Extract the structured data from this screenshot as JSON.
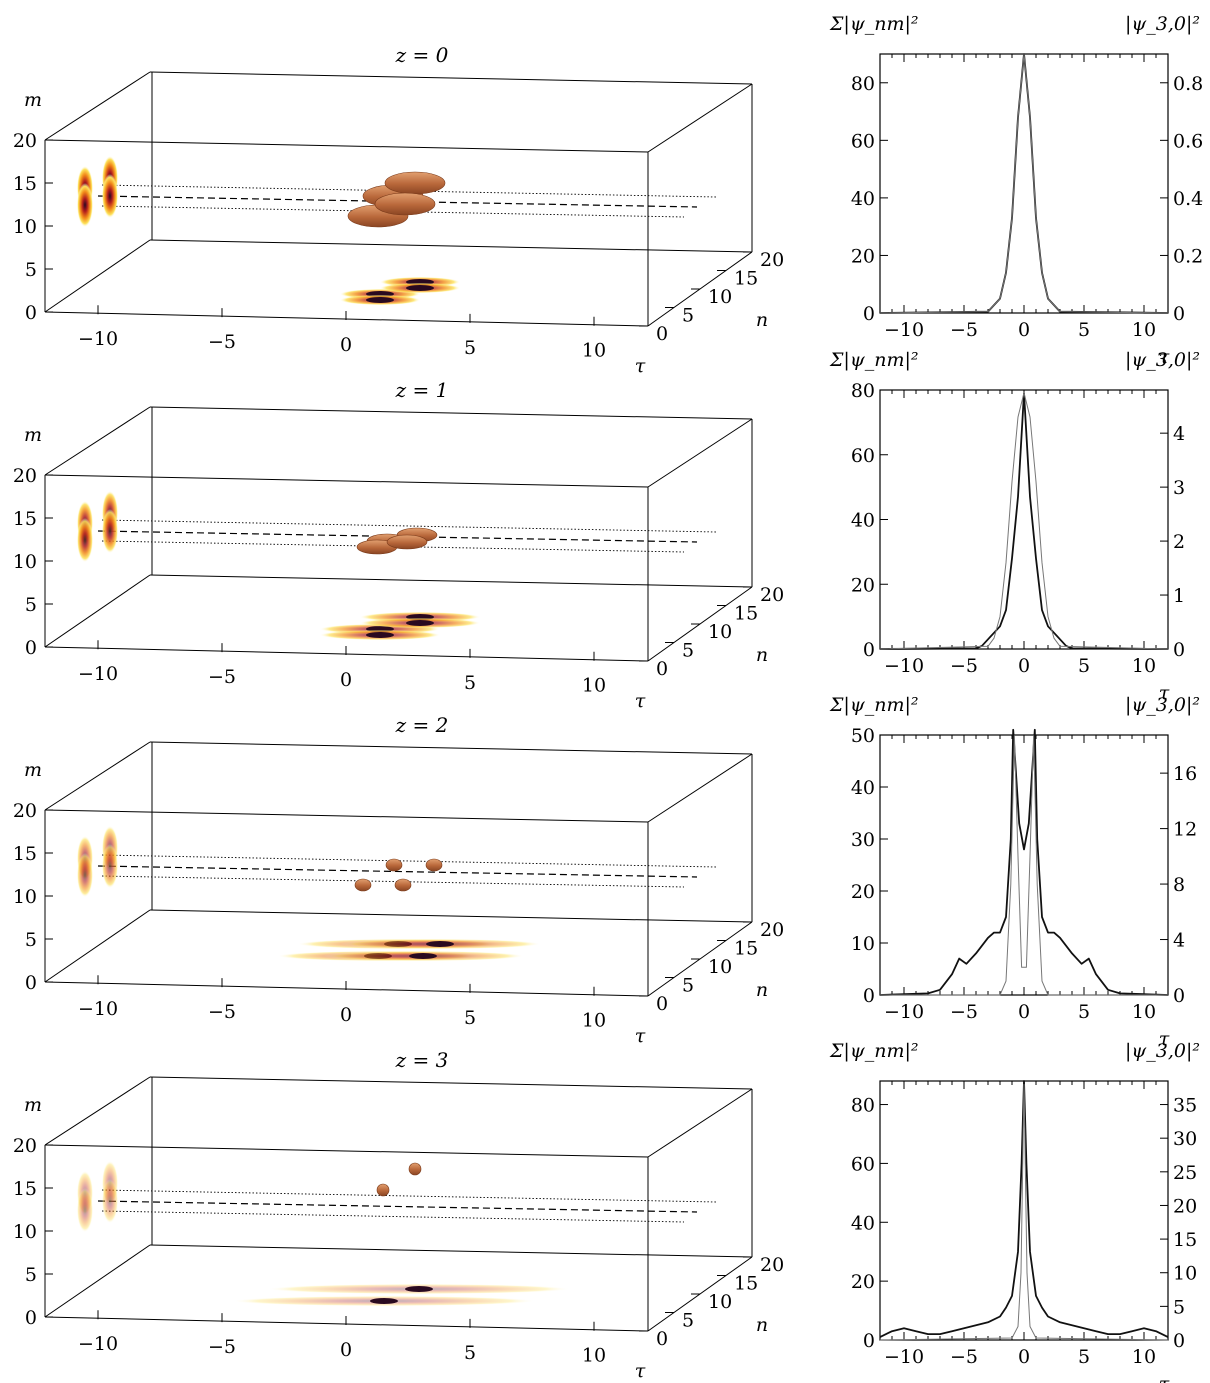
{
  "chart_data": [
    {
      "type": "heatmap",
      "panel": "3d",
      "title": "z = 0",
      "z": 0,
      "xlabel": "τ",
      "ylabel": "n",
      "zlabel": "m",
      "tau_ticks": [
        "−10",
        "−5",
        "0",
        "5",
        "10"
      ],
      "n_ticks": [
        "0",
        "5",
        "10",
        "15",
        "20"
      ],
      "m_ticks": [
        "0",
        "5",
        "10",
        "15",
        "20"
      ],
      "xlim": [
        -12,
        12
      ],
      "ylim": [
        0,
        20
      ],
      "zlim": [
        0,
        20
      ],
      "blobs": [
        {
          "tau": 0,
          "n": 5,
          "m": 12.5
        },
        {
          "tau": 0,
          "n": 15,
          "m": 12.5
        },
        {
          "tau": 0,
          "n": 5,
          "m": 14
        },
        {
          "tau": 0,
          "n": 15,
          "m": 14
        }
      ],
      "blob_size": "large"
    },
    {
      "type": "heatmap",
      "panel": "3d",
      "title": "z = 1",
      "z": 1,
      "xlabel": "τ",
      "ylabel": "n",
      "zlabel": "m",
      "tau_ticks": [
        "−10",
        "−5",
        "0",
        "5",
        "10"
      ],
      "n_ticks": [
        "0",
        "5",
        "10",
        "15",
        "20"
      ],
      "m_ticks": [
        "0",
        "5",
        "10",
        "15",
        "20"
      ],
      "xlim": [
        -12,
        12
      ],
      "ylim": [
        0,
        20
      ],
      "zlim": [
        0,
        20
      ],
      "blobs": [
        {
          "tau": 0,
          "n": 5,
          "m": 12.5
        },
        {
          "tau": 0,
          "n": 15,
          "m": 12.5
        },
        {
          "tau": 0,
          "n": 5,
          "m": 14
        },
        {
          "tau": 0,
          "n": 15,
          "m": 14
        }
      ],
      "blob_size": "medium"
    },
    {
      "type": "heatmap",
      "panel": "3d",
      "title": "z = 2",
      "z": 2,
      "xlabel": "τ",
      "ylabel": "n",
      "zlabel": "m",
      "tau_ticks": [
        "−10",
        "−5",
        "0",
        "5",
        "10"
      ],
      "n_ticks": [
        "0",
        "5",
        "10",
        "15",
        "20"
      ],
      "m_ticks": [
        "0",
        "5",
        "10",
        "15",
        "20"
      ],
      "xlim": [
        -12,
        12
      ],
      "ylim": [
        0,
        20
      ],
      "zlim": [
        0,
        20
      ],
      "blobs": [
        {
          "tau": -0.8,
          "n": 5,
          "m": 12.5
        },
        {
          "tau": 0.8,
          "n": 5,
          "m": 12.5
        },
        {
          "tau": -0.8,
          "n": 15,
          "m": 14
        },
        {
          "tau": 0.8,
          "n": 15,
          "m": 14
        }
      ],
      "blob_size": "small"
    },
    {
      "type": "heatmap",
      "panel": "3d",
      "title": "z = 3",
      "z": 3,
      "xlabel": "τ",
      "ylabel": "n",
      "zlabel": "m",
      "tau_ticks": [
        "−10",
        "−5",
        "0",
        "5",
        "10"
      ],
      "n_ticks": [
        "0",
        "5",
        "10",
        "15",
        "20"
      ],
      "m_ticks": [
        "0",
        "5",
        "10",
        "15",
        "20"
      ],
      "xlim": [
        -12,
        12
      ],
      "ylim": [
        0,
        20
      ],
      "zlim": [
        0,
        20
      ],
      "blobs": [
        {
          "tau": 0,
          "n": 5,
          "m": 12.5
        },
        {
          "tau": 0,
          "n": 15,
          "m": 14
        }
      ],
      "blob_size": "tiny"
    },
    {
      "type": "line",
      "panel": "2d",
      "z": 0,
      "xlabel": "τ",
      "ylabel_left": "Σ|ψ_nm|²",
      "ylabel_right": "|ψ_3,0|²",
      "xlim": [
        -12,
        12
      ],
      "ylim_left": [
        0,
        90
      ],
      "ylim_right": [
        0,
        0.9
      ],
      "xticks": [
        "−10",
        "−5",
        "0",
        "5",
        "10"
      ],
      "xtick_values": [
        -10,
        -5,
        0,
        5,
        10
      ],
      "yticks_left": [
        "0",
        "20",
        "40",
        "60",
        "80"
      ],
      "ytick_left_values": [
        0,
        20,
        40,
        60,
        80
      ],
      "yticks_right": [
        "0",
        "0.2",
        "0.4",
        "0.6",
        "0.8"
      ],
      "ytick_right_values": [
        0,
        0.2,
        0.4,
        0.6,
        0.8
      ],
      "series": [
        {
          "axis": "left",
          "x": [
            -12,
            -3,
            -2,
            -1.5,
            -1,
            -0.5,
            0,
            0.5,
            1,
            1.5,
            2,
            3,
            12
          ],
          "y": [
            0,
            0.5,
            5,
            14,
            33,
            68,
            90,
            68,
            33,
            14,
            5,
            0.5,
            0
          ]
        },
        {
          "axis": "right",
          "x": [
            -12,
            -3,
            -2,
            -1.5,
            -1,
            -0.5,
            0,
            0.5,
            1,
            1.5,
            2,
            3,
            12
          ],
          "y": [
            0,
            0.005,
            0.05,
            0.14,
            0.33,
            0.68,
            0.9,
            0.68,
            0.33,
            0.14,
            0.05,
            0.005,
            0
          ]
        }
      ]
    },
    {
      "type": "line",
      "panel": "2d",
      "z": 1,
      "xlabel": "τ",
      "ylabel_left": "Σ|ψ_nm|²",
      "ylabel_right": "|ψ_3,0|²",
      "xlim": [
        -12,
        12
      ],
      "ylim_left": [
        0,
        80
      ],
      "ylim_right": [
        0,
        4.8
      ],
      "xticks": [
        "−10",
        "−5",
        "0",
        "5",
        "10"
      ],
      "xtick_values": [
        -10,
        -5,
        0,
        5,
        10
      ],
      "yticks_left": [
        "0",
        "20",
        "40",
        "60",
        "80"
      ],
      "ytick_left_values": [
        0,
        20,
        40,
        60,
        80
      ],
      "yticks_right": [
        "0",
        "1",
        "2",
        "3",
        "4"
      ],
      "ytick_right_values": [
        0,
        1,
        2,
        3,
        4
      ],
      "series": [
        {
          "axis": "left",
          "x": [
            -12,
            -4,
            -3.5,
            -3,
            -2.5,
            -2,
            -1.5,
            -1,
            -0.5,
            0,
            0.5,
            1,
            1.5,
            2,
            2.5,
            3,
            3.5,
            4,
            12
          ],
          "y": [
            0,
            0.2,
            1,
            3,
            5,
            7,
            12,
            28,
            47,
            79,
            47,
            28,
            12,
            7,
            5,
            3,
            1,
            0.2,
            0
          ]
        },
        {
          "axis": "right",
          "x": [
            -12,
            -3,
            -2.5,
            -2,
            -1.5,
            -1,
            -0.5,
            0,
            0.5,
            1,
            1.5,
            2,
            2.5,
            3,
            12
          ],
          "y": [
            0,
            0.05,
            0.2,
            0.6,
            1.6,
            3.1,
            4.3,
            4.75,
            4.3,
            3.1,
            1.6,
            0.6,
            0.2,
            0.05,
            0
          ]
        }
      ]
    },
    {
      "type": "line",
      "panel": "2d",
      "z": 2,
      "xlabel": "τ",
      "ylabel_left": "Σ|ψ_nm|²",
      "ylabel_right": "|ψ_3,0|²",
      "xlim": [
        -12,
        12
      ],
      "ylim_left": [
        0,
        50
      ],
      "ylim_right": [
        0,
        18.75
      ],
      "xticks": [
        "−10",
        "−5",
        "0",
        "5",
        "10"
      ],
      "xtick_values": [
        -10,
        -5,
        0,
        5,
        10
      ],
      "yticks_left": [
        "0",
        "10",
        "20",
        "30",
        "40",
        "50"
      ],
      "ytick_left_values": [
        0,
        10,
        20,
        30,
        40,
        50
      ],
      "yticks_right": [
        "0",
        "4",
        "8",
        "12",
        "16"
      ],
      "ytick_right_values": [
        0,
        4,
        8,
        12,
        16
      ],
      "series": [
        {
          "axis": "left",
          "x": [
            -12,
            -8,
            -7,
            -6,
            -5.4,
            -4.8,
            -4,
            -3,
            -2.5,
            -2,
            -1.5,
            -1.1,
            -0.9,
            -0.4,
            0,
            0.4,
            0.9,
            1.1,
            1.5,
            2,
            2.5,
            3,
            4,
            4.8,
            5.4,
            6,
            7,
            8,
            12
          ],
          "y": [
            0,
            0.3,
            1,
            4,
            7,
            6,
            8,
            11,
            12,
            12,
            15,
            30,
            51,
            33,
            28,
            33,
            51,
            30,
            15,
            12,
            12,
            11,
            8,
            6,
            7,
            4,
            1,
            0.3,
            0
          ]
        },
        {
          "axis": "right",
          "x": [
            -12,
            -2,
            -1.5,
            -1.1,
            -0.8,
            -0.5,
            -0.2,
            0,
            0.2,
            0.5,
            0.8,
            1.1,
            1.5,
            2,
            12
          ],
          "y": [
            0,
            0,
            1,
            8,
            18.7,
            10,
            2,
            2,
            2,
            10,
            18.7,
            8,
            1,
            0,
            0
          ]
        }
      ]
    },
    {
      "type": "line",
      "panel": "2d",
      "z": 3,
      "xlabel": "τ",
      "ylabel_left": "Σ|ψ_nm|²",
      "ylabel_right": "|ψ_3,0|²",
      "xlim": [
        -12,
        12
      ],
      "ylim_left": [
        0,
        88
      ],
      "ylim_right": [
        0,
        38.5
      ],
      "xticks": [
        "−10",
        "−5",
        "0",
        "5",
        "10"
      ],
      "xtick_values": [
        -10,
        -5,
        0,
        5,
        10
      ],
      "yticks_left": [
        "0",
        "20",
        "40",
        "60",
        "80"
      ],
      "ytick_left_values": [
        0,
        20,
        40,
        60,
        80
      ],
      "yticks_right": [
        "0",
        "5",
        "10",
        "15",
        "20",
        "25",
        "30",
        "35"
      ],
      "ytick_right_values": [
        0,
        5,
        10,
        15,
        20,
        25,
        30,
        35
      ],
      "series": [
        {
          "axis": "left",
          "x": [
            -12,
            -11,
            -10,
            -9,
            -8,
            -7,
            -6,
            -5,
            -4,
            -3,
            -2,
            -1.5,
            -1,
            -0.5,
            -0.2,
            0,
            0.2,
            0.5,
            1,
            1.5,
            2,
            3,
            4,
            5,
            6,
            7,
            8,
            9,
            10,
            11,
            12
          ],
          "y": [
            1,
            3,
            4,
            3,
            2,
            2,
            3,
            4,
            5,
            6,
            8,
            11,
            15,
            30,
            60,
            88,
            60,
            30,
            15,
            11,
            8,
            6,
            5,
            4,
            3,
            2,
            2,
            3,
            4,
            3,
            1
          ]
        },
        {
          "axis": "right",
          "x": [
            -12,
            -1,
            -0.5,
            -0.25,
            0,
            0.25,
            0.5,
            1,
            12
          ],
          "y": [
            0,
            0.3,
            2,
            10,
            38,
            10,
            2,
            0.3,
            0
          ]
        }
      ]
    }
  ]
}
